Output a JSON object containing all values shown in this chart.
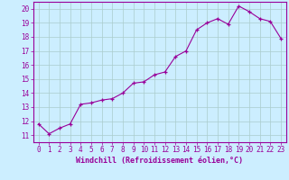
{
  "x": [
    0,
    1,
    2,
    3,
    4,
    5,
    6,
    7,
    8,
    9,
    10,
    11,
    12,
    13,
    14,
    15,
    16,
    17,
    18,
    19,
    20,
    21,
    22,
    23
  ],
  "y": [
    11.8,
    11.1,
    11.5,
    11.8,
    13.2,
    13.3,
    13.5,
    13.6,
    14.0,
    14.7,
    14.8,
    15.3,
    15.5,
    16.6,
    17.0,
    18.5,
    19.0,
    19.3,
    18.9,
    20.2,
    19.8,
    19.3,
    19.1,
    17.9
  ],
  "xlabel": "Windchill (Refroidissement éolien,°C)",
  "xlim": [
    -0.5,
    23.5
  ],
  "ylim": [
    10.5,
    20.5
  ],
  "yticks": [
    11,
    12,
    13,
    14,
    15,
    16,
    17,
    18,
    19,
    20
  ],
  "xticks": [
    0,
    1,
    2,
    3,
    4,
    5,
    6,
    7,
    8,
    9,
    10,
    11,
    12,
    13,
    14,
    15,
    16,
    17,
    18,
    19,
    20,
    21,
    22,
    23
  ],
  "line_color": "#990099",
  "marker": "+",
  "bg_color": "#cceeff",
  "grid_color": "#aacccc",
  "tick_label_fontsize": 5.5,
  "xlabel_fontsize": 6.0
}
